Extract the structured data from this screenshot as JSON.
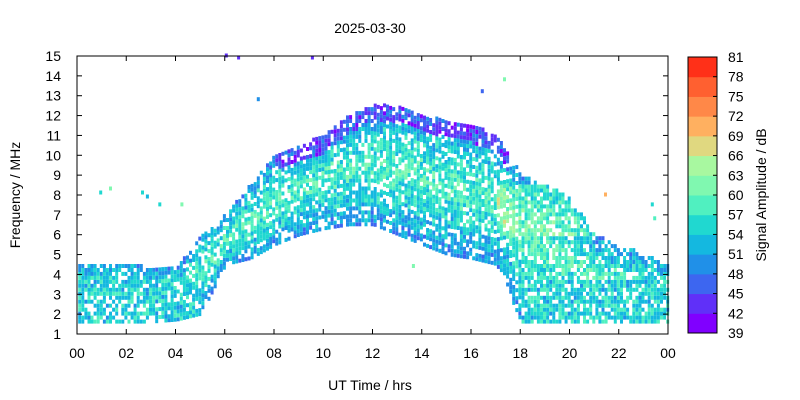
{
  "chart_data": {
    "type": "heatmap",
    "title": "2025-03-30",
    "xlabel": "UT Time / hrs",
    "ylabel": "Frequency / MHz",
    "xlim": [
      0,
      24
    ],
    "ylim": [
      1,
      15
    ],
    "x_ticks": [
      "00",
      "02",
      "04",
      "06",
      "08",
      "10",
      "12",
      "14",
      "16",
      "18",
      "20",
      "22",
      "00"
    ],
    "y_ticks": [
      "1",
      "2",
      "3",
      "4",
      "5",
      "6",
      "7",
      "8",
      "9",
      "10",
      "11",
      "12",
      "13",
      "14",
      "15"
    ],
    "grid": false,
    "colorbar": {
      "label": "Signal Amplitude / dB",
      "range": [
        39,
        81
      ],
      "ticks": [
        "81",
        "78",
        "75",
        "72",
        "69",
        "66",
        "63",
        "60",
        "57",
        "54",
        "51",
        "48",
        "45",
        "42",
        "39"
      ],
      "colors": [
        "#8000ff",
        "#6030f8",
        "#3d66f0",
        "#2090e8",
        "#14b8e0",
        "#20d8d0",
        "#50f0c0",
        "#80f8b0",
        "#a8f8a0",
        "#e0d880",
        "#ffb060",
        "#ff8848",
        "#ff6030",
        "#ff3018"
      ]
    },
    "frequency_envelope": {
      "hours": [
        0,
        1,
        2,
        3,
        4,
        5,
        6,
        7,
        8,
        9,
        10,
        11,
        12,
        13,
        14,
        15,
        16,
        17,
        18,
        19,
        20,
        21,
        22,
        23,
        24
      ],
      "upper_mhz": [
        4.5,
        4.6,
        4.6,
        4.3,
        4.3,
        6.0,
        7.0,
        8.5,
        10.0,
        10.5,
        11.0,
        12.0,
        12.5,
        12.5,
        12.0,
        11.8,
        11.5,
        11.0,
        9.0,
        8.5,
        7.8,
        6.0,
        5.5,
        5.0,
        4.5
      ],
      "lower_mhz": [
        1.6,
        1.6,
        1.6,
        1.6,
        1.7,
        2.0,
        4.5,
        4.8,
        5.5,
        6.0,
        6.3,
        6.5,
        6.5,
        6.0,
        5.5,
        5.0,
        4.8,
        4.5,
        1.6,
        1.6,
        1.6,
        1.6,
        1.6,
        1.6,
        1.6
      ],
      "night_band_mhz": [
        1.6,
        3.8
      ],
      "day_peak_amplitude_db": 66
    },
    "sporadic_points": [
      {
        "hour": 6.0,
        "mhz": 15.0,
        "db": 42
      },
      {
        "hour": 6.5,
        "mhz": 14.9,
        "db": 42
      },
      {
        "hour": 9.5,
        "mhz": 14.9,
        "db": 42
      },
      {
        "hour": 7.3,
        "mhz": 12.8,
        "db": 48
      },
      {
        "hour": 16.4,
        "mhz": 13.2,
        "db": 45
      },
      {
        "hour": 17.3,
        "mhz": 13.8,
        "db": 60
      },
      {
        "hour": 0.9,
        "mhz": 8.1,
        "db": 54
      },
      {
        "hour": 1.3,
        "mhz": 8.3,
        "db": 60
      },
      {
        "hour": 2.6,
        "mhz": 8.1,
        "db": 54
      },
      {
        "hour": 2.8,
        "mhz": 7.9,
        "db": 51
      },
      {
        "hour": 3.3,
        "mhz": 7.5,
        "db": 54
      },
      {
        "hour": 4.2,
        "mhz": 7.5,
        "db": 60
      },
      {
        "hour": 23.3,
        "mhz": 7.5,
        "db": 54
      },
      {
        "hour": 23.4,
        "mhz": 6.8,
        "db": 57
      },
      {
        "hour": 21.4,
        "mhz": 8.0,
        "db": 69
      },
      {
        "hour": 13.6,
        "mhz": 4.4,
        "db": 60
      }
    ]
  }
}
